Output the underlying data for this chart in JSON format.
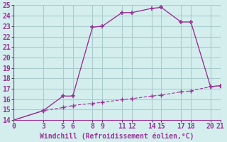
{
  "xlabel": "Windchill (Refroidissement éolien,°C)",
  "background_color": "#d4eeee",
  "line_color": "#993399",
  "grid_color": "#aacccc",
  "x_line1": [
    0,
    3,
    5,
    6,
    8,
    9,
    11,
    12,
    14,
    15,
    17,
    18,
    20,
    21
  ],
  "y_line1": [
    14.0,
    14.9,
    16.3,
    16.3,
    22.9,
    23.0,
    24.3,
    24.3,
    24.7,
    24.8,
    23.4,
    23.4,
    17.2,
    17.3
  ],
  "x_line2": [
    0,
    3,
    5,
    6,
    8,
    9,
    11,
    12,
    14,
    15,
    17,
    18,
    20,
    21
  ],
  "y_line2": [
    14.0,
    14.9,
    15.2,
    15.4,
    15.6,
    15.7,
    15.95,
    16.05,
    16.3,
    16.4,
    16.7,
    16.8,
    17.2,
    17.3
  ],
  "ylim": [
    14,
    25
  ],
  "xlim": [
    0,
    21
  ],
  "yticks": [
    14,
    15,
    16,
    17,
    18,
    19,
    20,
    21,
    22,
    23,
    24,
    25
  ],
  "xticks": [
    0,
    3,
    5,
    6,
    8,
    9,
    11,
    12,
    14,
    15,
    17,
    18,
    20,
    21
  ],
  "tick_fontsize": 7,
  "xlabel_fontsize": 7
}
